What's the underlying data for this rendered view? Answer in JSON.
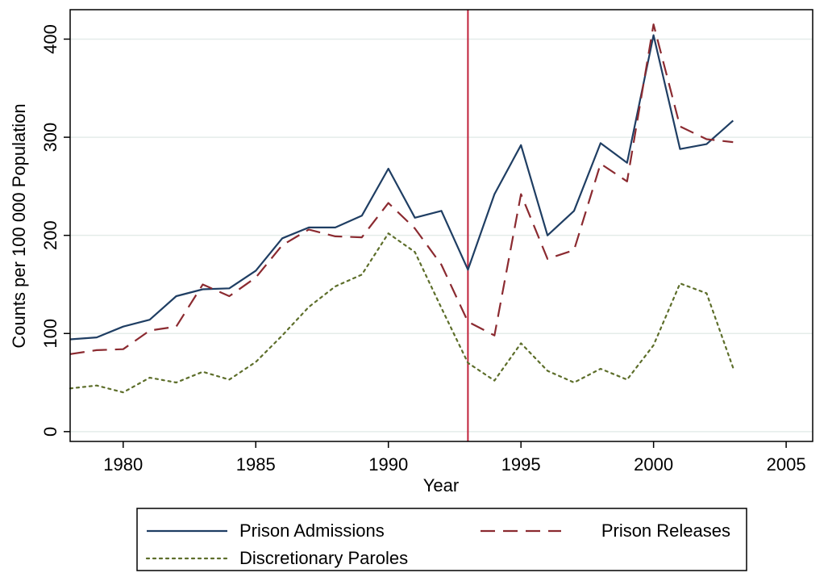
{
  "chart_data": {
    "type": "line",
    "xlabel": "Year",
    "ylabel": "Counts per 100 000 Population",
    "xlim": [
      1978,
      2006
    ],
    "ylim": [
      -10,
      430
    ],
    "x_ticks": [
      1980,
      1985,
      1990,
      1995,
      2000,
      2005
    ],
    "y_ticks": [
      0,
      100,
      200,
      300,
      400
    ],
    "grid": "horizontal",
    "reference_line": {
      "x": 1993,
      "color": "#c0223a"
    },
    "x": [
      1978,
      1979,
      1980,
      1981,
      1982,
      1983,
      1984,
      1985,
      1986,
      1987,
      1988,
      1989,
      1990,
      1991,
      1992,
      1993,
      1994,
      1995,
      1996,
      1997,
      1998,
      1999,
      2000,
      2001,
      2002,
      2003
    ],
    "series": [
      {
        "name": "Prison Admissions",
        "color": "#1f3e63",
        "dash": "solid",
        "values": [
          94,
          96,
          107,
          114,
          138,
          145,
          146,
          164,
          197,
          208,
          208,
          220,
          268,
          218,
          225,
          165,
          242,
          292,
          200,
          225,
          294,
          274,
          404,
          288,
          293,
          317
        ]
      },
      {
        "name": "Prison Releases",
        "color": "#8b2a30",
        "dash": "dashed",
        "values": [
          79,
          83,
          84,
          103,
          107,
          150,
          138,
          157,
          190,
          206,
          199,
          198,
          233,
          207,
          170,
          112,
          98,
          242,
          176,
          185,
          273,
          255,
          415,
          311,
          298,
          295
        ]
      },
      {
        "name": "Discretionary Paroles",
        "color": "#5d6e2a",
        "dash": "dotted",
        "values": [
          44,
          47,
          40,
          55,
          50,
          61,
          53,
          71,
          98,
          127,
          148,
          160,
          202,
          183,
          126,
          70,
          52,
          90,
          62,
          50,
          64,
          53,
          88,
          151,
          141,
          65
        ]
      }
    ],
    "legend": {
      "placement": "bottom",
      "entries": [
        "Prison Admissions",
        "Prison Releases",
        "Discretionary Paroles"
      ]
    }
  }
}
